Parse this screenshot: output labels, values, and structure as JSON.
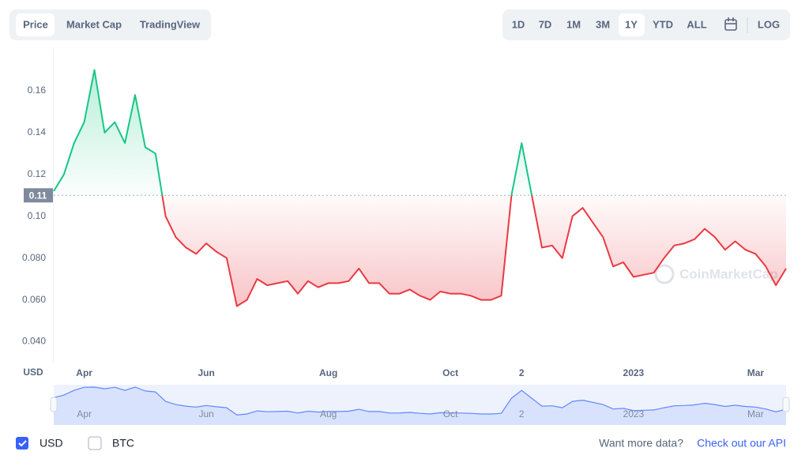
{
  "chart_data": {
    "type": "line",
    "ylabel": "USD",
    "categories": [
      null,
      null,
      null,
      "Apr",
      null,
      null,
      null,
      null,
      null,
      null,
      null,
      null,
      null,
      null,
      null,
      "Jun",
      null,
      null,
      null,
      null,
      null,
      null,
      null,
      null,
      null,
      null,
      null,
      "Aug",
      null,
      null,
      null,
      null,
      null,
      null,
      null,
      null,
      null,
      null,
      null,
      "Oct",
      null,
      null,
      null,
      null,
      null,
      null,
      "2",
      null,
      null,
      null,
      null,
      null,
      null,
      null,
      null,
      null,
      null,
      "2023",
      null,
      null,
      null,
      null,
      null,
      null,
      null,
      null,
      null,
      null,
      null,
      "Mar",
      null,
      null,
      null
    ],
    "values": [
      0.112,
      0.12,
      0.135,
      0.145,
      0.17,
      0.14,
      0.145,
      0.135,
      0.158,
      0.133,
      0.13,
      0.1,
      0.09,
      0.085,
      0.082,
      0.087,
      0.083,
      0.08,
      0.057,
      0.06,
      0.07,
      0.067,
      0.068,
      0.069,
      0.063,
      0.069,
      0.066,
      0.068,
      0.068,
      0.069,
      0.075,
      0.068,
      0.068,
      0.063,
      0.063,
      0.065,
      0.062,
      0.06,
      0.064,
      0.063,
      0.063,
      0.062,
      0.06,
      0.06,
      0.062,
      0.11,
      0.135,
      0.11,
      0.085,
      0.086,
      0.08,
      0.1,
      0.104,
      0.097,
      0.09,
      0.076,
      0.078,
      0.071,
      0.072,
      0.073,
      0.08,
      0.086,
      0.087,
      0.089,
      0.094,
      0.09,
      0.084,
      0.088,
      0.084,
      0.082,
      0.076,
      0.067,
      0.075
    ],
    "baseline": 0.11,
    "color_up": "#16c784",
    "color_down": "#ea3943",
    "navigator_color": "#6188ff",
    "ylim": [
      0.03,
      0.18
    ],
    "yticks": [
      {
        "value": 0.04,
        "label": "0.040"
      },
      {
        "value": 0.06,
        "label": "0.060"
      },
      {
        "value": 0.08,
        "label": "0.080"
      },
      {
        "value": 0.1,
        "label": "0.10"
      },
      0.12,
      0.14,
      0.16
    ],
    "grid": false,
    "watermark": "CoinMarketCap"
  },
  "ui": {
    "tabs": [
      "Price",
      "Market Cap",
      "TradingView"
    ],
    "ranges": [
      "1D",
      "7D",
      "1M",
      "3M",
      "1Y",
      "YTD",
      "ALL"
    ],
    "log": "LOG",
    "currencies": [
      "USD",
      "BTC"
    ],
    "more_data": "Want more data?",
    "api_link": "Check out our API"
  }
}
